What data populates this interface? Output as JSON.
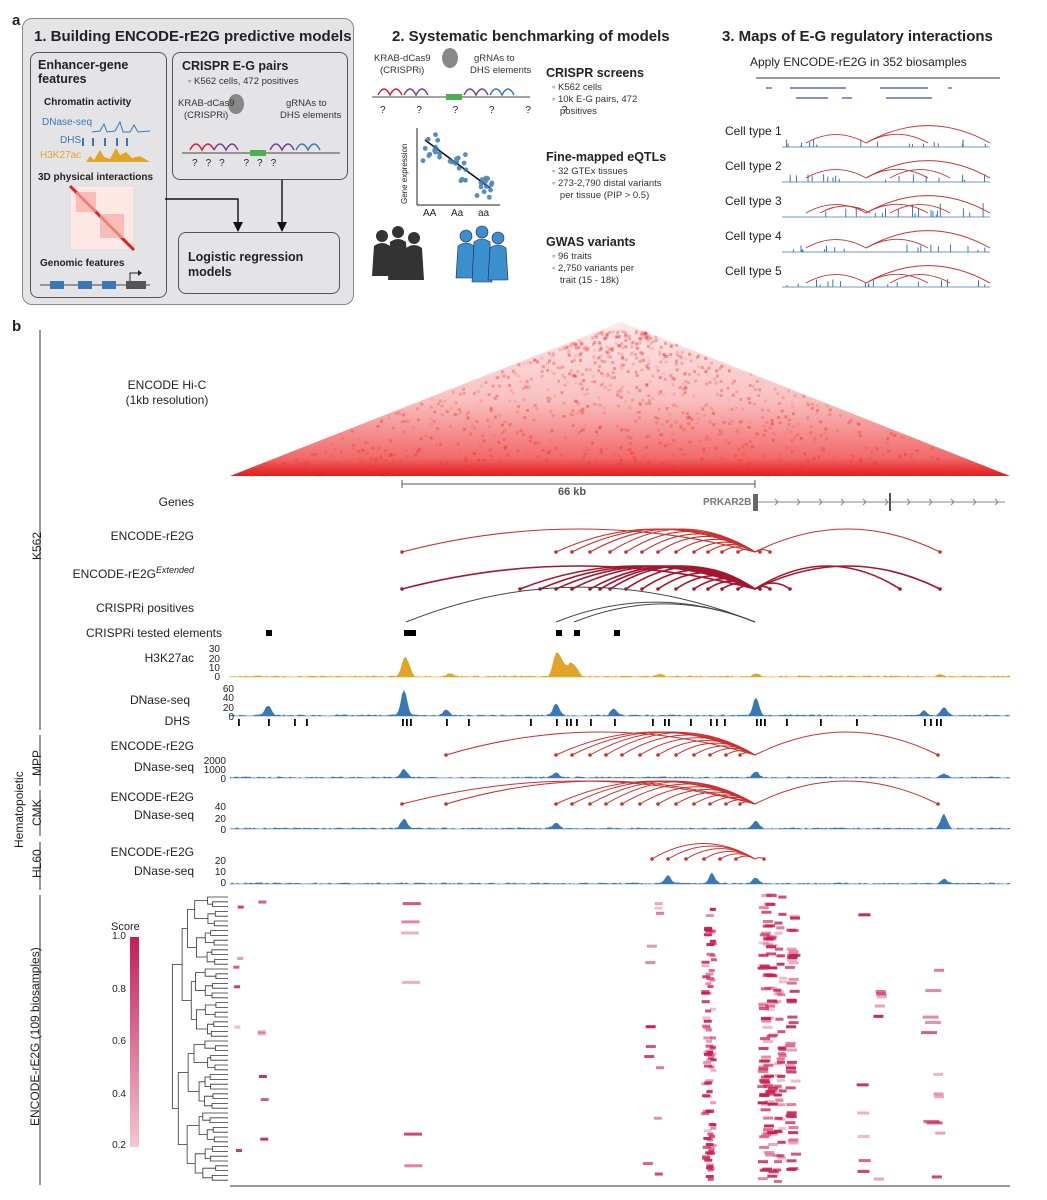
{
  "panel_a": {
    "letter": "a",
    "box1": {
      "title": "1. Building ENCODE-rE2G predictive models",
      "features_title": "Enhancer-gene features",
      "chromatin": "Chromatin activity",
      "dnase": "DNase-seq",
      "dhs": "DHS",
      "h3k27ac": "H3K27ac",
      "physical": "3D physical interactions",
      "genomic": "Genomic features",
      "crispr_title": "CRISPR E-G pairs",
      "crispr_bullet": "K562 cells, 472 positives",
      "krab": "KRAB-dCas9",
      "crispri": "(CRISPRi)",
      "grna": "gRNAs to",
      "dhs_elements": "DHS elements",
      "lr": "Logistic regression",
      "lr2": "models",
      "q": "?"
    },
    "box2": {
      "title": "2. Systematic benchmarking of models",
      "krab": "KRAB-dCas9",
      "crispri": "(CRISPRi)",
      "grna": "gRNAs to",
      "dhs_elements": "DHS elements",
      "screens": "CRISPR screens",
      "screens_b1": "K562 cells",
      "screens_b2": "10k E-G pairs, 472",
      "screens_b2b": "positives",
      "eqtl": "Fine-mapped eQTLs",
      "eqtl_b1": "32 GTEx tissues",
      "eqtl_b2": "273-2,790 distal variants",
      "eqtl_b2b": "per tissue (PIP > 0.5)",
      "ylabel": "Gene expression",
      "x_aa": "AA",
      "x_Aa": "Aa",
      "x_aa2": "aa",
      "gwas": "GWAS variants",
      "gwas_b1": "96 traits",
      "gwas_b2": "2,750 variants per",
      "gwas_b2b": "trait (15 - 18k)"
    },
    "box3": {
      "title": "3. Maps of E-G regulatory interactions",
      "subtitle": "Apply ENCODE-rE2G in 352 biosamples",
      "cells": [
        "Cell type 1",
        "Cell type 2",
        "Cell type 3",
        "Cell type 4",
        "Cell type 5"
      ]
    }
  },
  "panel_b": {
    "letter": "b",
    "group_k562": "K562",
    "group_hema": "Hematopoietic",
    "group_mpp": "MPP",
    "group_cmk": "CMK",
    "group_hl60": "HL60",
    "group_all": "ENCODE-rE2G (109 biosamples)",
    "hic": "ENCODE Hi-C",
    "hic2": "(1kb resolution)",
    "scale": "66 kb",
    "genes": "Genes",
    "gene_name": "PRKAR2B",
    "rE2G": "ENCODE-rE2G",
    "rE2G_ext": "ENCODE-rE2G",
    "ext_sup": "Extended",
    "crispri_pos": "CRISPRi positives",
    "crispri_tested": "CRISPRi tested elements",
    "h3k27ac": "H3K27ac",
    "dnase": "DNase-seq",
    "dhs": "DHS",
    "h3k_ticks": [
      "30",
      "20",
      "10",
      "0"
    ],
    "dnase_ticks": [
      "60",
      "40",
      "20",
      "0"
    ],
    "mpp_ticks": [
      "2000",
      "1000",
      "0"
    ],
    "cmk_ticks": [
      "40",
      "20",
      "0"
    ],
    "hl60_ticks": [
      "20",
      "10",
      "0"
    ],
    "score": "Score",
    "score_ticks": [
      "1.0",
      "0.8",
      "0.6",
      "0.4",
      "0.2"
    ]
  },
  "colors": {
    "panel_bg": "#e4e4e6",
    "arc_red": "#c8332f",
    "arc_dark": "#a3172e",
    "dnase_blue": "#3a78b5",
    "h3k_orange": "#e0a526",
    "heat_pink": "#c8336a"
  }
}
